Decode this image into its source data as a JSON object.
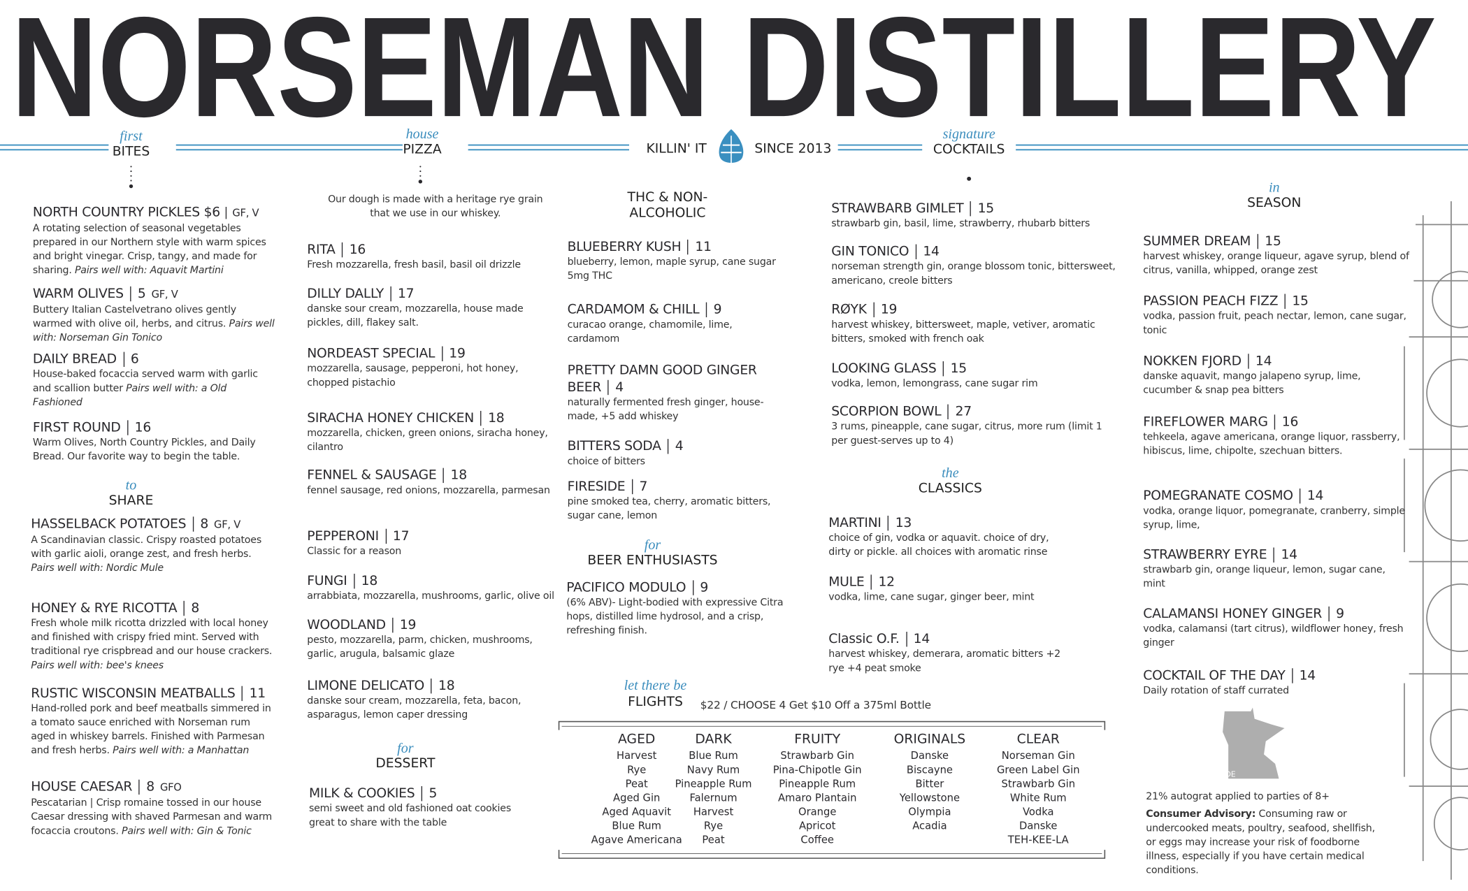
{
  "header": {
    "title": "NORSEMAN DISTILLERY",
    "tagline_left": "KILLIN' IT",
    "tagline_right": "SINCE 2013"
  },
  "sections": {
    "bites": {
      "kicker": "first",
      "title": "BITES",
      "items": [
        {
          "name": "NORTH COUNTRY PICKLES $6",
          "tags": "GF, V",
          "desc": "A rotating selection of seasonal vegetables prepared in our Northern style with warm spices and bright vinegar. Crisp, tangy, and made for sharing.",
          "pairs": "Pairs well with: Aquavit Martini"
        },
        {
          "name": "WARM OLIVES",
          "price": "5",
          "tags": "GF, V",
          "desc": "Buttery Italian Castelvetrano olives gently warmed with olive oil, herbs, and citrus.",
          "pairs": "Pairs well with: Norseman Gin Tonico"
        },
        {
          "name": "DAILY BREAD",
          "price": "6",
          "desc": "House-baked focaccia served warm with garlic and scallion butter",
          "pairs": "Pairs well with: a Old Fashioned"
        },
        {
          "name": "FIRST ROUND",
          "price": "16",
          "desc": "Warm Olives, North Country Pickles, and Daily Bread. Our favorite way to begin the table."
        }
      ]
    },
    "share": {
      "kicker": "to",
      "title": "SHARE",
      "items": [
        {
          "name": "HASSELBACK POTATOES",
          "price": "8",
          "tags": "GF, V",
          "desc": "A Scandinavian classic. Crispy roasted potatoes with garlic aioli, orange zest, and fresh herbs.",
          "pairs": "Pairs well with:  Nordic Mule"
        },
        {
          "name": "HONEY & RYE RICOTTA",
          "price": "8",
          "desc": "Fresh whole milk ricotta drizzled with local honey and finished with crispy fried mint. Served with traditional rye crispbread and our house crackers.",
          "pairs": "Pairs well with:  bee's knees"
        },
        {
          "name": "RUSTIC WISCONSIN MEATBALLS",
          "price": "11",
          "desc": "Hand-rolled pork and beef meatballs simmered in a tomato sauce enriched with Norseman rum aged in whiskey barrels. Finished with Parmesan and fresh herbs.",
          "pairs": "Pairs well with:  a Manhattan"
        },
        {
          "name": "HOUSE CAESAR",
          "price": "8",
          "tags": "GFO",
          "desc": "Pescatarian | Crisp romaine tossed in our house Caesar dressing with shaved Parmesan and warm focaccia croutons.",
          "pairs": "Pairs well with: Gin & Tonic"
        }
      ]
    },
    "pizza": {
      "kicker": "house",
      "title": "PIZZA",
      "note": "Our dough is made with a heritage rye grain that we use in our whiskey.",
      "items": [
        {
          "name": "RITA",
          "price": "16",
          "desc": "Fresh mozzarella, fresh basil, basil oil drizzle"
        },
        {
          "name": "DILLY DALLY",
          "price": "17",
          "desc": "danske sour cream, mozzarella, house made pickles, dill, flakey salt."
        },
        {
          "name": "NORDEAST SPECIAL",
          "price": "19",
          "desc": "mozzarella, sausage, pepperoni, hot honey, chopped pistachio"
        },
        {
          "name": "SIRACHA HONEY CHICKEN",
          "price": "18",
          "desc": "mozzarella, chicken, green onions, siracha honey, cilantro"
        },
        {
          "name": "FENNEL & SAUSAGE",
          "price": "18",
          "desc": "fennel sausage, red onions, mozzarella, parmesan"
        },
        {
          "name": "PEPPERONI",
          "price": "17",
          "desc": "Classic for a reason"
        },
        {
          "name": "FUNGI",
          "price": "18",
          "desc": "arrabbiata, mozzarella, mushrooms, garlic, olive oil"
        },
        {
          "name": "WOODLAND",
          "price": "19",
          "desc": "pesto, mozzarella, parm, chicken, mushrooms, garlic, arugula, balsamic glaze"
        },
        {
          "name": "LIMONE DELICATO",
          "price": "18",
          "desc": "danske sour cream, mozzarella, feta, bacon, asparagus, lemon caper dressing"
        }
      ]
    },
    "dessert": {
      "kicker": "for",
      "title": "DESSERT",
      "items": [
        {
          "name": "MILK & COOKIES",
          "price": "5",
          "desc": "semi sweet and old fashioned oat cookies great to share with the table"
        }
      ]
    },
    "thc": {
      "title": "THC & NON-ALCOHOLIC",
      "items": [
        {
          "name": "BLUEBERRY KUSH",
          "price": "11",
          "desc": "blueberry, lemon, maple syrup, cane sugar 5mg THC"
        },
        {
          "name": "CARDAMOM & CHILL",
          "price": "9",
          "desc": "curacao orange, chamomile, lime, cardamom"
        },
        {
          "name": "PRETTY DAMN GOOD GINGER BEER",
          "price": "4",
          "desc": "naturally fermented fresh ginger, house-made, +5 add whiskey"
        },
        {
          "name": "BITTERS SODA",
          "price": "4",
          "desc": "choice of bitters"
        },
        {
          "name": "FIRESIDE",
          "price": "7",
          "desc": "pine smoked tea, cherry, aromatic bitters, sugar cane, lemon"
        }
      ]
    },
    "beer": {
      "kicker": "for",
      "title": "BEER ENTHUSIASTS",
      "items": [
        {
          "name": "PACIFICO MODULO",
          "price": "9",
          "desc": "(6% ABV)- Light-bodied with expressive Citra hops, distilled lime hydrosol, and a crisp, refreshing finish."
        }
      ]
    },
    "cocktails": {
      "kicker": "signature",
      "title": "COCKTAILS",
      "items": [
        {
          "name": "STRAWBARB GIMLET",
          "price": "15",
          "desc": "strawbarb gin, basil, lime, strawberry, rhubarb bitters"
        },
        {
          "name": "GIN TONICO",
          "price": "14",
          "desc": "norseman strength gin, orange blossom tonic, bittersweet, americano, creole bitters"
        },
        {
          "name": "RØYK",
          "price": "19",
          "desc": "harvest whiskey, bittersweet, maple, vetiver, aromatic bitters, smoked with french oak"
        },
        {
          "name": "LOOKING GLASS",
          "price": "15",
          "desc": "vodka, lemon, lemongrass, cane sugar rim"
        },
        {
          "name": "SCORPION BOWL",
          "price": "27",
          "desc": "3 rums, pineapple, cane sugar, citrus, more rum (limit 1 per guest-serves up to 4)"
        }
      ]
    },
    "classics": {
      "kicker": "the",
      "title": "CLASSICS",
      "items": [
        {
          "name": "MARTINI",
          "price": "13",
          "desc": "choice of gin, vodka or aquavit. choice of dry, dirty or pickle. all choices with aromatic rinse"
        },
        {
          "name": "MULE",
          "price": "12",
          "desc": "vodka, lime, cane sugar, ginger beer, mint"
        },
        {
          "name": "Classic O.F.",
          "price": "14",
          "desc": "harvest whiskey, demerara, aromatic bitters +2 rye +4 peat smoke"
        }
      ]
    },
    "season": {
      "kicker": "in",
      "title": "SEASON",
      "items": [
        {
          "name": "SUMMER DREAM",
          "price": "15",
          "desc": "harvest whiskey, orange liqueur, agave syrup, blend of citrus, vanilla, whipped, orange zest"
        },
        {
          "name": "PASSION PEACH FIZZ",
          "price": "15",
          "desc": "vodka, passion fruit, peach nectar, lemon, cane sugar, tonic"
        },
        {
          "name": "NOKKEN FJORD",
          "price": "14",
          "desc": "danske aquavit, mango jalapeno syrup, lime, cucumber & snap pea bitters"
        },
        {
          "name": "FIREFLOWER MARG",
          "price": "16",
          "desc": "tehkeela, agave americana, orange liquor, rassberry, hibiscus, lime, chipolte, szechuan bitters."
        },
        {
          "name": "POMEGRANATE COSMO",
          "price": "14",
          "desc": "vodka, orange liquor, pomegranate, cranberry, simple syrup, lime,"
        },
        {
          "name": "STRAWBERRY EYRE",
          "price": "14",
          "desc": "strawbarb gin, orange liqueur, lemon, sugar cane, mint"
        },
        {
          "name": "CALAMANSI HONEY GINGER",
          "price": "9",
          "desc": "vodka, calamansi (tart citrus), wildflower honey, fresh ginger"
        },
        {
          "name": "COCKTAIL OF THE DAY",
          "price": "14",
          "desc": "Daily rotation of staff currated"
        }
      ]
    }
  },
  "flights": {
    "kicker": "let there be",
    "title": "FLIGHTS",
    "offer": "$22 / CHOOSE 4 Get $10 Off a 375ml Bottle",
    "groups": [
      {
        "name": "AGED",
        "items": [
          "Harvest",
          "Rye",
          "Peat",
          "Aged Gin",
          "Aged Aquavit",
          "Blue Rum",
          "Agave Americana"
        ]
      },
      {
        "name": "DARK",
        "items": [
          "Blue Rum",
          "Navy Rum",
          "Pineapple Rum",
          "Falernum",
          "Harvest",
          "Rye",
          "Peat"
        ]
      },
      {
        "name": "FRUITY",
        "items": [
          "Strawbarb Gin",
          "Pina-Chipotle Gin",
          "Pineapple Rum",
          "Amaro Plantain",
          "Orange",
          "Apricot",
          "Coffee"
        ]
      },
      {
        "name": "ORIGINALS",
        "items": [
          "Danske",
          "Biscayne",
          "Bitter",
          "Yellowstone",
          "Olympia",
          "Acadia"
        ]
      },
      {
        "name": "CLEAR",
        "items": [
          "Norseman Gin",
          "Green Label Gin",
          "Strawbarb Gin",
          "White Rum",
          "Vodka",
          "Danske",
          "TEH-KEE-LA"
        ]
      }
    ]
  },
  "footer": {
    "made": "MADE",
    "autograt": "21% autograt applied to parties of 8+",
    "advisory_label": "Consumer Advisory:",
    "advisory": "Consuming raw or undercooked meats, poultry, seafood, shellfish, or eggs may increase your risk of foodborne illness, especially if you have certain medical conditions."
  }
}
